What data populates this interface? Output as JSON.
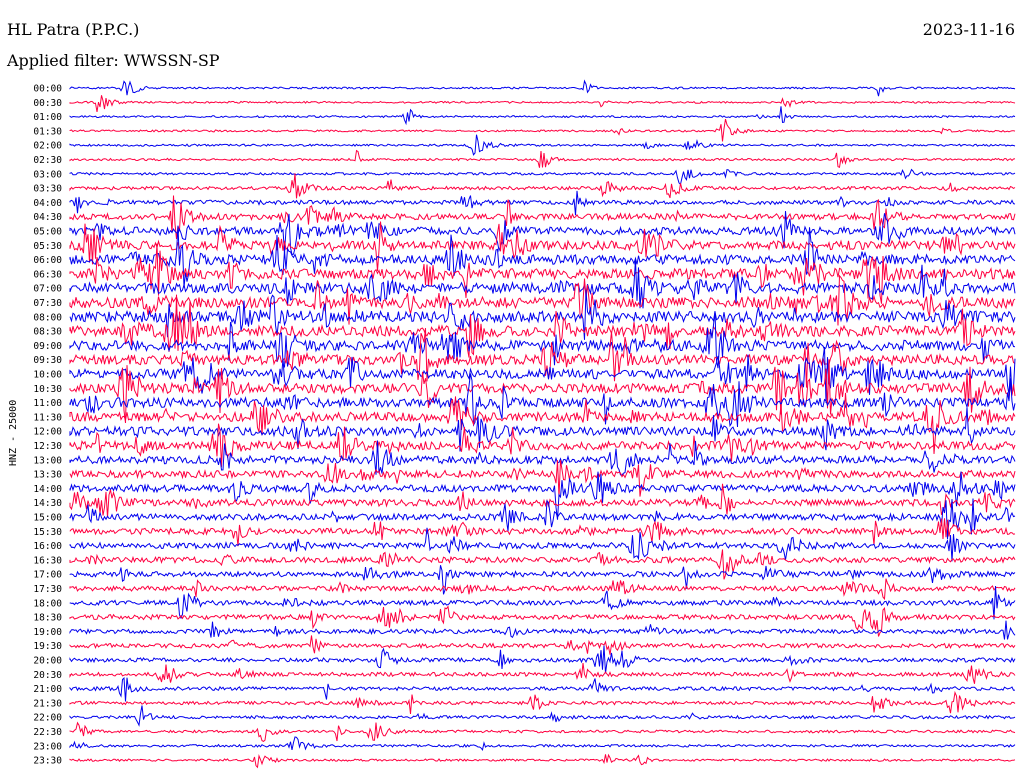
{
  "header": {
    "station": "HL Patra (P.P.C.)",
    "filter": "Applied filter: WWSSN-SP",
    "date": "2023-11-16"
  },
  "channel_label": "HNZ - 25000",
  "colors": {
    "blue": "#0000ee",
    "red": "#ff0040"
  },
  "chart_data": {
    "type": "line",
    "title": "",
    "row_labels": [
      "00:00",
      "00:30",
      "01:00",
      "01:30",
      "02:00",
      "02:30",
      "03:00",
      "03:30",
      "04:00",
      "04:30",
      "05:00",
      "05:30",
      "06:00",
      "06:30",
      "07:00",
      "07:30",
      "08:00",
      "08:30",
      "09:00",
      "09:30",
      "10:00",
      "10:30",
      "11:00",
      "11:30",
      "12:00",
      "12:30",
      "13:00",
      "13:30",
      "14:00",
      "14:30",
      "15:00",
      "15:30",
      "16:00",
      "16:30",
      "17:00",
      "17:30",
      "18:00",
      "18:30",
      "19:00",
      "19:30",
      "20:00",
      "20:30",
      "21:00",
      "21:30",
      "22:00",
      "22:30",
      "23:00",
      "23:30"
    ],
    "row_colors": [
      "blue",
      "red"
    ],
    "row_activity": [
      0.05,
      0.05,
      0.05,
      0.06,
      0.07,
      0.08,
      0.1,
      0.18,
      0.25,
      0.4,
      0.55,
      0.65,
      0.7,
      0.75,
      0.8,
      0.8,
      0.8,
      0.78,
      0.75,
      0.72,
      0.7,
      0.7,
      0.68,
      0.65,
      0.62,
      0.6,
      0.55,
      0.5,
      0.48,
      0.45,
      0.42,
      0.4,
      0.38,
      0.36,
      0.34,
      0.32,
      0.3,
      0.3,
      0.28,
      0.26,
      0.24,
      0.22,
      0.2,
      0.18,
      0.15,
      0.12,
      0.1,
      0.08
    ],
    "xlabel": "",
    "ylabel": ""
  }
}
